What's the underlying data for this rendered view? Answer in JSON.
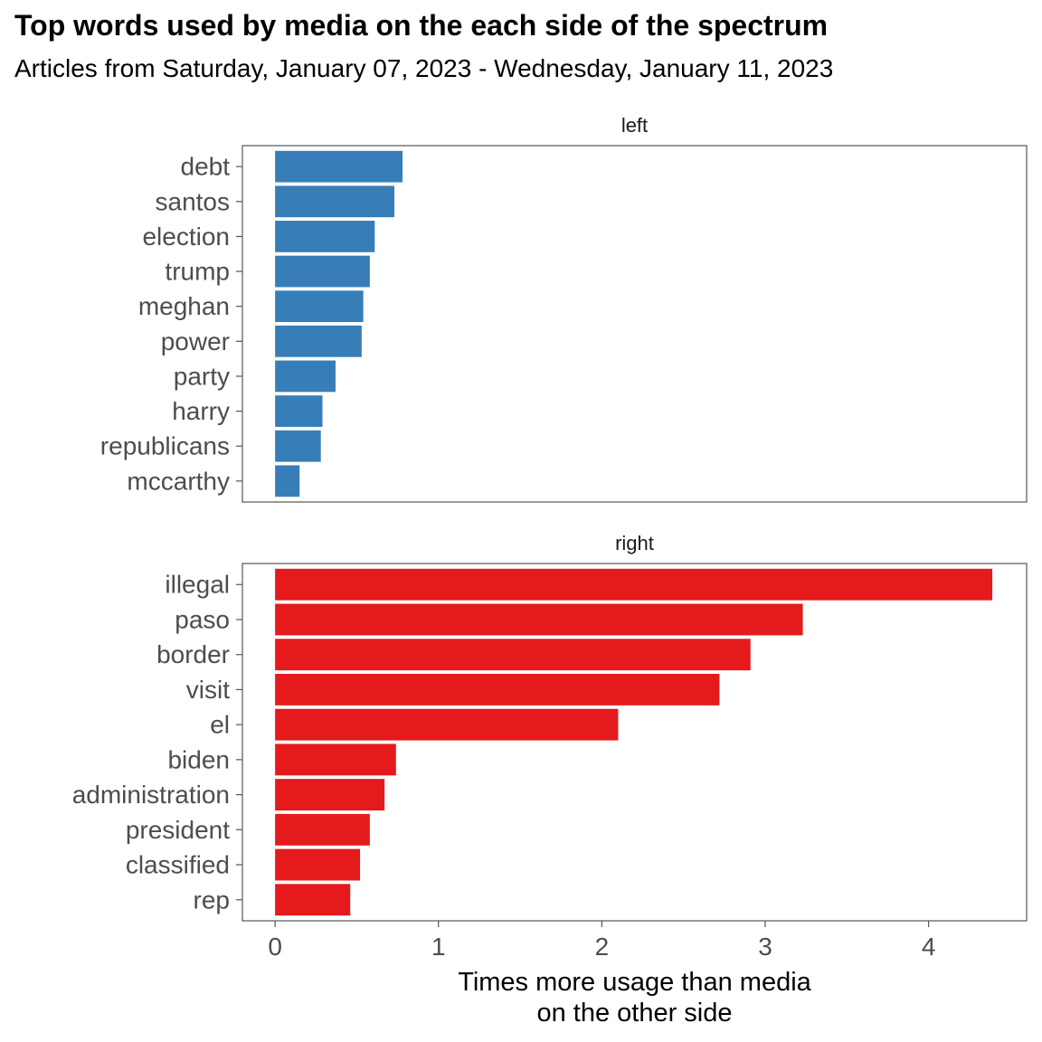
{
  "title": "Top words used by media on the each side of the spectrum",
  "subtitle": "Articles from Saturday, January 07, 2023 - Wednesday, January 11, 2023",
  "chart_data": {
    "type": "bar",
    "orientation": "horizontal",
    "facet_by": "side",
    "xlabel": "Times more usage than media\non the other side",
    "xlim": [
      -0.2,
      4.6
    ],
    "xticks": [
      0,
      1,
      2,
      3,
      4
    ],
    "grid": false,
    "panels": [
      {
        "label": "left",
        "color": "#377EB8",
        "categories": [
          "debt",
          "santos",
          "election",
          "trump",
          "meghan",
          "power",
          "party",
          "harry",
          "republicans",
          "mccarthy"
        ],
        "values": [
          0.78,
          0.73,
          0.61,
          0.58,
          0.54,
          0.53,
          0.37,
          0.29,
          0.28,
          0.15
        ]
      },
      {
        "label": "right",
        "color": "#E41A1C",
        "categories": [
          "illegal",
          "paso",
          "border",
          "visit",
          "el",
          "biden",
          "administration",
          "president",
          "classified",
          "rep"
        ],
        "values": [
          4.39,
          3.23,
          2.91,
          2.72,
          2.1,
          0.74,
          0.67,
          0.58,
          0.52,
          0.46
        ]
      }
    ]
  }
}
